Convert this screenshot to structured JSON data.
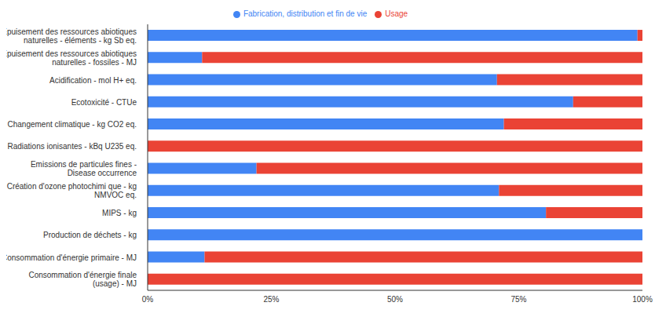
{
  "chart_data": {
    "type": "bar",
    "orientation": "horizontal",
    "stacked": true,
    "legend": "top",
    "grid": false,
    "categories": [
      "Epuisement des ressources abiotiques naturelles - éléments - kg Sb eq.",
      "Epuisement des ressources abiotiques naturelles - fossiles - MJ",
      "Acidification - mol H+ eq.",
      "Ecotoxicité - CTUe",
      "Changement  climatique - kg CO2 eq.",
      "Radiations ionisantes - kBq U235 eq.",
      "Emissions de particules fines - Disease occurrence",
      "Création d'ozone photochimi que - kg NMVOC eq.",
      "MIPS - kg",
      "Production de déchets - kg",
      "Consommation d'énergie primaire - MJ",
      "Consommation d'énergie finale (usage) - MJ"
    ],
    "series": [
      {
        "name": "Fabrication, distribution et fin de vie",
        "color": "#4285f4",
        "values": [
          99,
          11,
          70.6,
          86,
          72,
          0,
          22,
          71,
          80.5,
          100,
          11.5,
          0
        ]
      },
      {
        "name": "Usage",
        "color": "#ea4335",
        "values": [
          1,
          89,
          29.4,
          14,
          28,
          100,
          78,
          29,
          19.5,
          0,
          88.5,
          100
        ]
      }
    ],
    "xlim": [
      0,
      100
    ],
    "xticks": [
      {
        "value": 0,
        "label": "0%"
      },
      {
        "value": 25,
        "label": "25%"
      },
      {
        "value": 50,
        "label": "50%"
      },
      {
        "value": 75,
        "label": "75%"
      },
      {
        "value": 100,
        "label": "100%"
      }
    ]
  }
}
